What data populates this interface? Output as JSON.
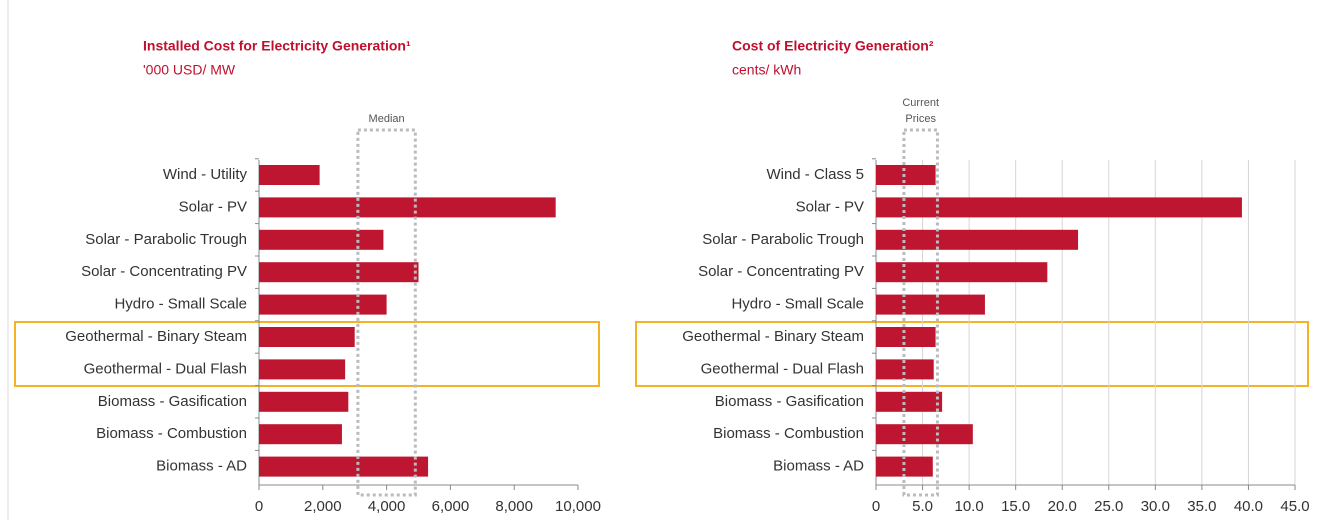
{
  "chart_data": [
    {
      "type": "bar",
      "orientation": "horizontal",
      "title": "Installed Cost for Electricity Generation¹",
      "subtitle": "'000 USD/ MW",
      "categories": [
        "Wind - Utility",
        "Solar - PV",
        "Solar - Parabolic Trough",
        "Solar - Concentrating PV",
        "Hydro - Small Scale",
        "Geothermal - Binary Steam",
        "Geothermal - Dual Flash",
        "Biomass - Gasification",
        "Biomass - Combustion",
        "Biomass - AD"
      ],
      "values": [
        1900,
        9300,
        3900,
        5000,
        4000,
        3000,
        2700,
        2800,
        2600,
        5300
      ],
      "color": "#be1530",
      "xlim": [
        0,
        10000
      ],
      "xticks": [
        0,
        {
          "value": 2000,
          "label": "2,000"
        },
        {
          "value": 4000,
          "label": "4,000"
        },
        {
          "value": 6000,
          "label": "6,000"
        },
        {
          "value": 8000,
          "label": "8,000"
        },
        {
          "value": 10000,
          "label": "10,000"
        }
      ],
      "grid": false,
      "band": {
        "label": [
          "Median"
        ],
        "range": [
          3100,
          4900
        ]
      }
    },
    {
      "type": "bar",
      "orientation": "horizontal",
      "title": "Cost of Electricity Generation²",
      "subtitle": "cents/ kWh",
      "categories": [
        "Wind - Class 5",
        "Solar - PV",
        "Solar - Parabolic Trough",
        "Solar - Concentrating PV",
        "Hydro - Small Scale",
        "Geothermal - Binary Steam",
        "Geothermal - Dual Flash",
        "Biomass - Gasification",
        "Biomass - Combustion",
        "Biomass - AD"
      ],
      "values": [
        6.4,
        39.3,
        21.7,
        18.4,
        11.7,
        6.4,
        6.2,
        7.1,
        10.4,
        6.1
      ],
      "color": "#be1530",
      "xlim": [
        0,
        45
      ],
      "xticks": [
        0,
        {
          "value": 5,
          "label": "5.0"
        },
        {
          "value": 10,
          "label": "10.0"
        },
        {
          "value": 15,
          "label": "15.0"
        },
        {
          "value": 20,
          "label": "20.0"
        },
        {
          "value": 25,
          "label": "25.0"
        },
        {
          "value": 30,
          "label": "30.0"
        },
        {
          "value": 35,
          "label": "35.0"
        },
        {
          "value": 40,
          "label": "40.0"
        },
        {
          "value": 45,
          "label": "45.0"
        }
      ],
      "grid": true,
      "band": {
        "label": [
          "Current",
          "Prices"
        ],
        "range": [
          3.0,
          6.6
        ]
      }
    }
  ]
}
